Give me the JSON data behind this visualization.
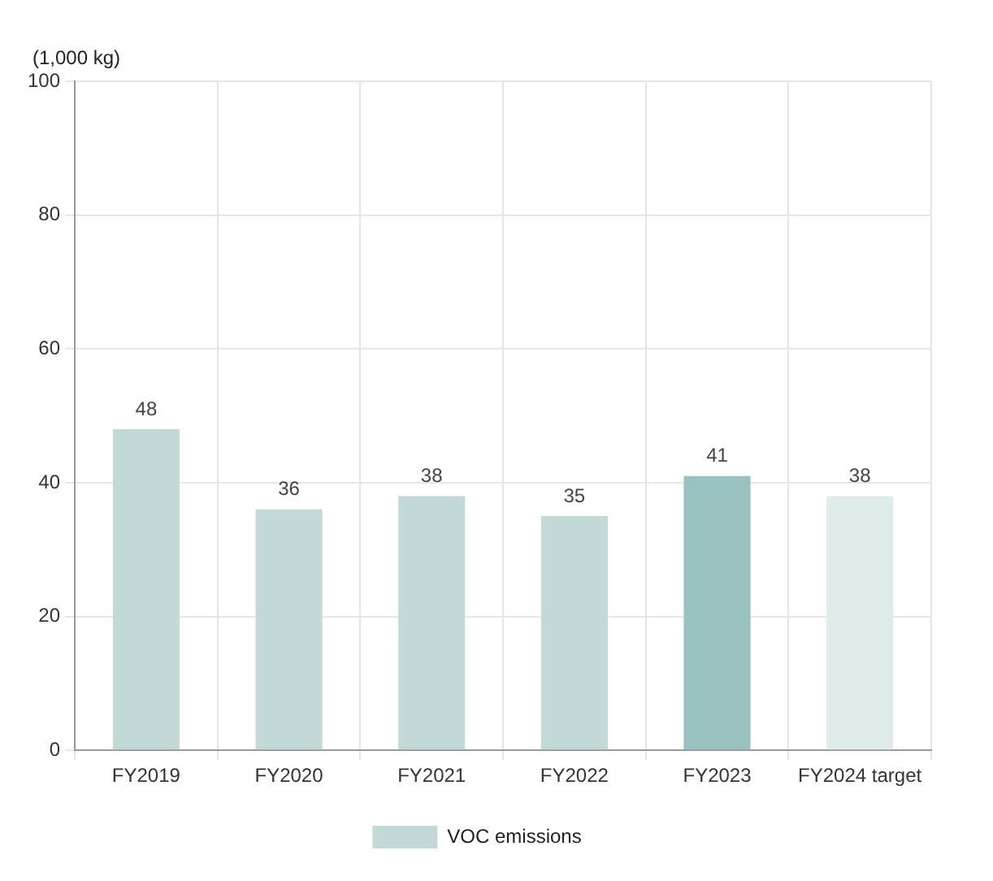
{
  "chart_data": {
    "type": "bar",
    "ylabel": "(1,000 kg)",
    "categories": [
      "FY2019",
      "FY2020",
      "FY2021",
      "FY2022",
      "FY2023",
      "FY2024 target"
    ],
    "series": [
      {
        "name": "VOC emissions",
        "color": "#c2d9d8",
        "colors": [
          "#c2d9d8",
          "#c2d9d8",
          "#c2d9d8",
          "#c2d9d8",
          "#98c1bf",
          "#e0ecec"
        ],
        "values": [
          48,
          36,
          38,
          35,
          41,
          38
        ]
      }
    ],
    "ylim": [
      0,
      100
    ],
    "yticks": [
      0,
      20,
      40,
      60,
      80,
      100
    ],
    "grid": true,
    "legend": "bottom",
    "data_labels": true
  }
}
